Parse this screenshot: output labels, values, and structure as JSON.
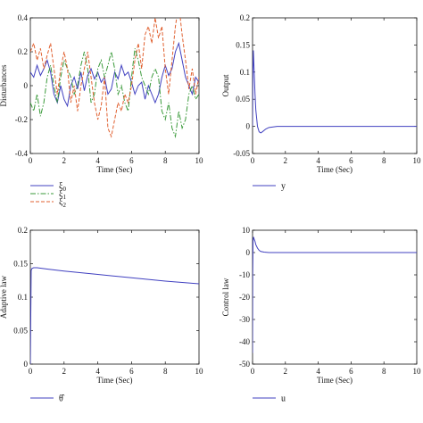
{
  "chart_data": [
    {
      "id": "disturbances",
      "type": "line",
      "xlabel": "Time (Sec)",
      "ylabel": "Disturbances",
      "xlim": [
        0,
        10
      ],
      "ylim": [
        -0.4,
        0.4
      ],
      "xticks": [
        0,
        2,
        4,
        6,
        8,
        10
      ],
      "yticks": [
        -0.4,
        -0.2,
        0,
        0.2,
        0.4
      ],
      "xtick_labels": [
        "0",
        "2",
        "4",
        "6",
        "8",
        "10"
      ],
      "ytick_labels": [
        "-0.4",
        "-0.2",
        "0",
        "0.2",
        "0.4"
      ],
      "legend_position": "below",
      "series": [
        {
          "name": "ξ0",
          "name_base": "ξ",
          "name_sub": "0",
          "color": "#4040c0",
          "dash": "",
          "x": [
            0,
            0.2,
            0.4,
            0.6,
            0.8,
            1.0,
            1.2,
            1.4,
            1.6,
            1.8,
            2.0,
            2.2,
            2.4,
            2.6,
            2.8,
            3.0,
            3.2,
            3.4,
            3.6,
            3.8,
            4.0,
            4.2,
            4.4,
            4.6,
            4.8,
            5.0,
            5.2,
            5.4,
            5.6,
            5.8,
            6.0,
            6.2,
            6.4,
            6.6,
            6.8,
            7.0,
            7.2,
            7.4,
            7.6,
            7.8,
            8.0,
            8.2,
            8.4,
            8.6,
            8.8,
            9.0,
            9.2,
            9.4,
            9.6,
            9.8,
            10.0
          ],
          "y": [
            0.08,
            0.05,
            0.12,
            0.06,
            0.1,
            0.15,
            0.08,
            -0.05,
            -0.1,
            0.0,
            -0.08,
            -0.12,
            0.0,
            0.05,
            -0.02,
            0.08,
            -0.03,
            0.06,
            0.1,
            0.04,
            0.08,
            0.02,
            0.05,
            -0.05,
            -0.02,
            0.08,
            0.04,
            0.12,
            0.06,
            0.08,
            0.02,
            -0.05,
            0.0,
            0.02,
            -0.08,
            0.0,
            -0.05,
            -0.1,
            -0.05,
            0.05,
            0.12,
            0.06,
            0.1,
            0.2,
            0.25,
            0.15,
            0.05,
            0.0,
            -0.05,
            0.05,
            0.02
          ]
        },
        {
          "name": "ξ1",
          "name_base": "ξ",
          "name_sub": "1",
          "color": "#3a9a3a",
          "dash": "6,2,1.5,2",
          "x": [
            0,
            0.2,
            0.4,
            0.6,
            0.8,
            1.0,
            1.2,
            1.4,
            1.6,
            1.8,
            2.0,
            2.2,
            2.4,
            2.6,
            2.8,
            3.0,
            3.2,
            3.4,
            3.6,
            3.8,
            4.0,
            4.2,
            4.4,
            4.6,
            4.8,
            5.0,
            5.2,
            5.4,
            5.6,
            5.8,
            6.0,
            6.2,
            6.4,
            6.6,
            6.8,
            7.0,
            7.2,
            7.4,
            7.6,
            7.8,
            8.0,
            8.2,
            8.4,
            8.6,
            8.8,
            9.0,
            9.2,
            9.4,
            9.6,
            9.8,
            10.0
          ],
          "y": [
            -0.1,
            -0.15,
            -0.05,
            -0.18,
            -0.1,
            0.05,
            0.12,
            0.0,
            -0.1,
            0.05,
            0.15,
            0.1,
            0.05,
            -0.05,
            0.0,
            0.12,
            0.2,
            0.1,
            -0.1,
            -0.05,
            0.1,
            0.15,
            0.05,
            0.12,
            0.2,
            0.1,
            -0.05,
            0.0,
            -0.1,
            -0.15,
            0.05,
            0.22,
            0.15,
            0.05,
            0.0,
            -0.05,
            0.05,
            0.1,
            0.05,
            -0.15,
            -0.2,
            -0.1,
            -0.25,
            -0.3,
            -0.15,
            -0.25,
            -0.2,
            -0.05,
            0.0,
            -0.08,
            -0.05
          ]
        },
        {
          "name": "ξ2",
          "name_base": "ξ",
          "name_sub": "2",
          "color": "#e06030",
          "dash": "4,2",
          "x": [
            0,
            0.2,
            0.4,
            0.6,
            0.8,
            1.0,
            1.2,
            1.4,
            1.6,
            1.8,
            2.0,
            2.2,
            2.4,
            2.6,
            2.8,
            3.0,
            3.2,
            3.4,
            3.6,
            3.8,
            4.0,
            4.2,
            4.4,
            4.6,
            4.8,
            5.0,
            5.2,
            5.4,
            5.6,
            5.8,
            6.0,
            6.2,
            6.4,
            6.6,
            6.8,
            7.0,
            7.2,
            7.4,
            7.6,
            7.8,
            8.0,
            8.2,
            8.4,
            8.6,
            8.8,
            9.0,
            9.2,
            9.4,
            9.6,
            9.8,
            10.0
          ],
          "y": [
            0.2,
            0.25,
            0.15,
            0.22,
            0.1,
            0.18,
            0.25,
            0.1,
            -0.05,
            0.1,
            0.2,
            0.1,
            -0.1,
            0.0,
            -0.15,
            0.0,
            0.1,
            0.2,
            0.05,
            -0.1,
            -0.2,
            -0.12,
            0.05,
            -0.25,
            -0.3,
            -0.2,
            -0.1,
            -0.15,
            -0.05,
            -0.1,
            0.0,
            0.15,
            0.25,
            0.1,
            0.3,
            0.35,
            0.25,
            0.4,
            0.28,
            0.35,
            0.1,
            -0.05,
            0.15,
            0.35,
            0.48,
            0.3,
            0.15,
            -0.02,
            0.1,
            -0.05,
            0.05
          ]
        }
      ]
    },
    {
      "id": "output",
      "type": "line",
      "xlabel": "Time (Sec)",
      "ylabel": "Output",
      "xlim": [
        0,
        10
      ],
      "ylim": [
        -0.05,
        0.2
      ],
      "xticks": [
        0,
        2,
        4,
        6,
        8,
        10
      ],
      "yticks": [
        -0.05,
        0,
        0.05,
        0.1,
        0.15,
        0.2
      ],
      "xtick_labels": [
        "0",
        "2",
        "4",
        "6",
        "8",
        "10"
      ],
      "ytick_labels": [
        "-0.05",
        "0",
        "0.05",
        "0.1",
        "0.15",
        "0.2"
      ],
      "legend_position": "below",
      "series": [
        {
          "name": "y",
          "name_base": "y",
          "name_sub": "",
          "color": "#4040c0",
          "dash": "",
          "x": [
            0,
            0.02,
            0.05,
            0.1,
            0.15,
            0.2,
            0.3,
            0.4,
            0.5,
            0.6,
            0.8,
            1.0,
            1.5,
            2.0,
            3.0,
            5.0,
            10.0
          ],
          "y": [
            0.0,
            0.1,
            0.14,
            0.1,
            0.06,
            0.03,
            0.0,
            -0.01,
            -0.012,
            -0.01,
            -0.005,
            -0.002,
            0.0,
            0.0,
            0.0,
            0.0,
            0.0
          ]
        }
      ]
    },
    {
      "id": "adaptive-law",
      "type": "line",
      "xlabel": "Time (Sec)",
      "ylabel": "Adaptive law",
      "xlim": [
        0,
        10
      ],
      "ylim": [
        0,
        0.2
      ],
      "xticks": [
        0,
        2,
        4,
        6,
        8,
        10
      ],
      "yticks": [
        0,
        0.05,
        0.1,
        0.15,
        0.2
      ],
      "xtick_labels": [
        "0",
        "2",
        "4",
        "6",
        "8",
        "10"
      ],
      "ytick_labels": [
        "0",
        "0.05",
        "0.1",
        "0.15",
        "0.2"
      ],
      "legend_position": "below",
      "series": [
        {
          "name": "θ̂",
          "name_base": "θ̂",
          "name_sub": "",
          "color": "#4040c0",
          "dash": "",
          "x": [
            0,
            0.05,
            0.1,
            0.2,
            0.4,
            1.0,
            2.0,
            4.0,
            6.0,
            8.0,
            10.0
          ],
          "y": [
            0.0,
            0.14,
            0.143,
            0.144,
            0.144,
            0.142,
            0.139,
            0.134,
            0.129,
            0.124,
            0.12
          ]
        }
      ]
    },
    {
      "id": "control-law",
      "type": "line",
      "xlabel": "Time (Sec)",
      "ylabel": "Control law",
      "xlim": [
        0,
        10
      ],
      "ylim": [
        -50,
        10
      ],
      "xticks": [
        0,
        2,
        4,
        6,
        8,
        10
      ],
      "yticks": [
        -50,
        -40,
        -30,
        -20,
        -10,
        0,
        10
      ],
      "xtick_labels": [
        "0",
        "2",
        "4",
        "6",
        "8",
        "10"
      ],
      "ytick_labels": [
        "-50",
        "-40",
        "-30",
        "-20",
        "-10",
        "0",
        "10"
      ],
      "legend_position": "below",
      "series": [
        {
          "name": "u",
          "name_base": "u",
          "name_sub": "",
          "color": "#4040c0",
          "dash": "",
          "x": [
            0,
            0.01,
            0.03,
            0.06,
            0.1,
            0.15,
            0.2,
            0.3,
            0.4,
            0.5,
            0.7,
            1.0,
            2.0,
            5.0,
            10.0
          ],
          "y": [
            -45,
            -10,
            5,
            7,
            6,
            5,
            3.5,
            2,
            1,
            0.5,
            0.2,
            0.0,
            0.0,
            0.0,
            0.0
          ]
        }
      ]
    }
  ]
}
